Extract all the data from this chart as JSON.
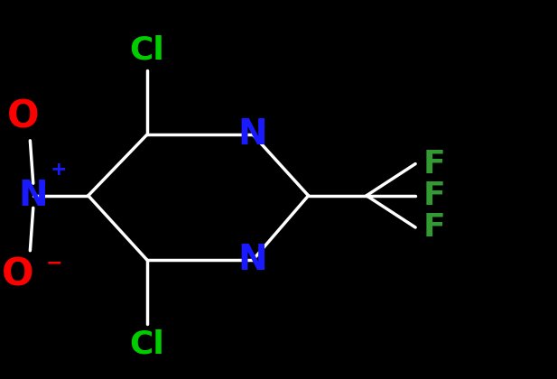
{
  "bg_color": "#000000",
  "bond_color": "#ffffff",
  "bond_width": 2.5,
  "atom_colors": {
    "N_ring": "#1a1aff",
    "N_no2": "#1a1aff",
    "Cl": "#00cc00",
    "F": "#339933",
    "O": "#ff0000",
    "C": "#ffffff"
  },
  "font_size_atom": 26,
  "font_size_super": 16,
  "figsize": [
    6.17,
    4.2
  ],
  "dpi": 100,
  "xlim": [
    -3.0,
    5.5
  ],
  "ylim": [
    -3.0,
    3.2
  ]
}
